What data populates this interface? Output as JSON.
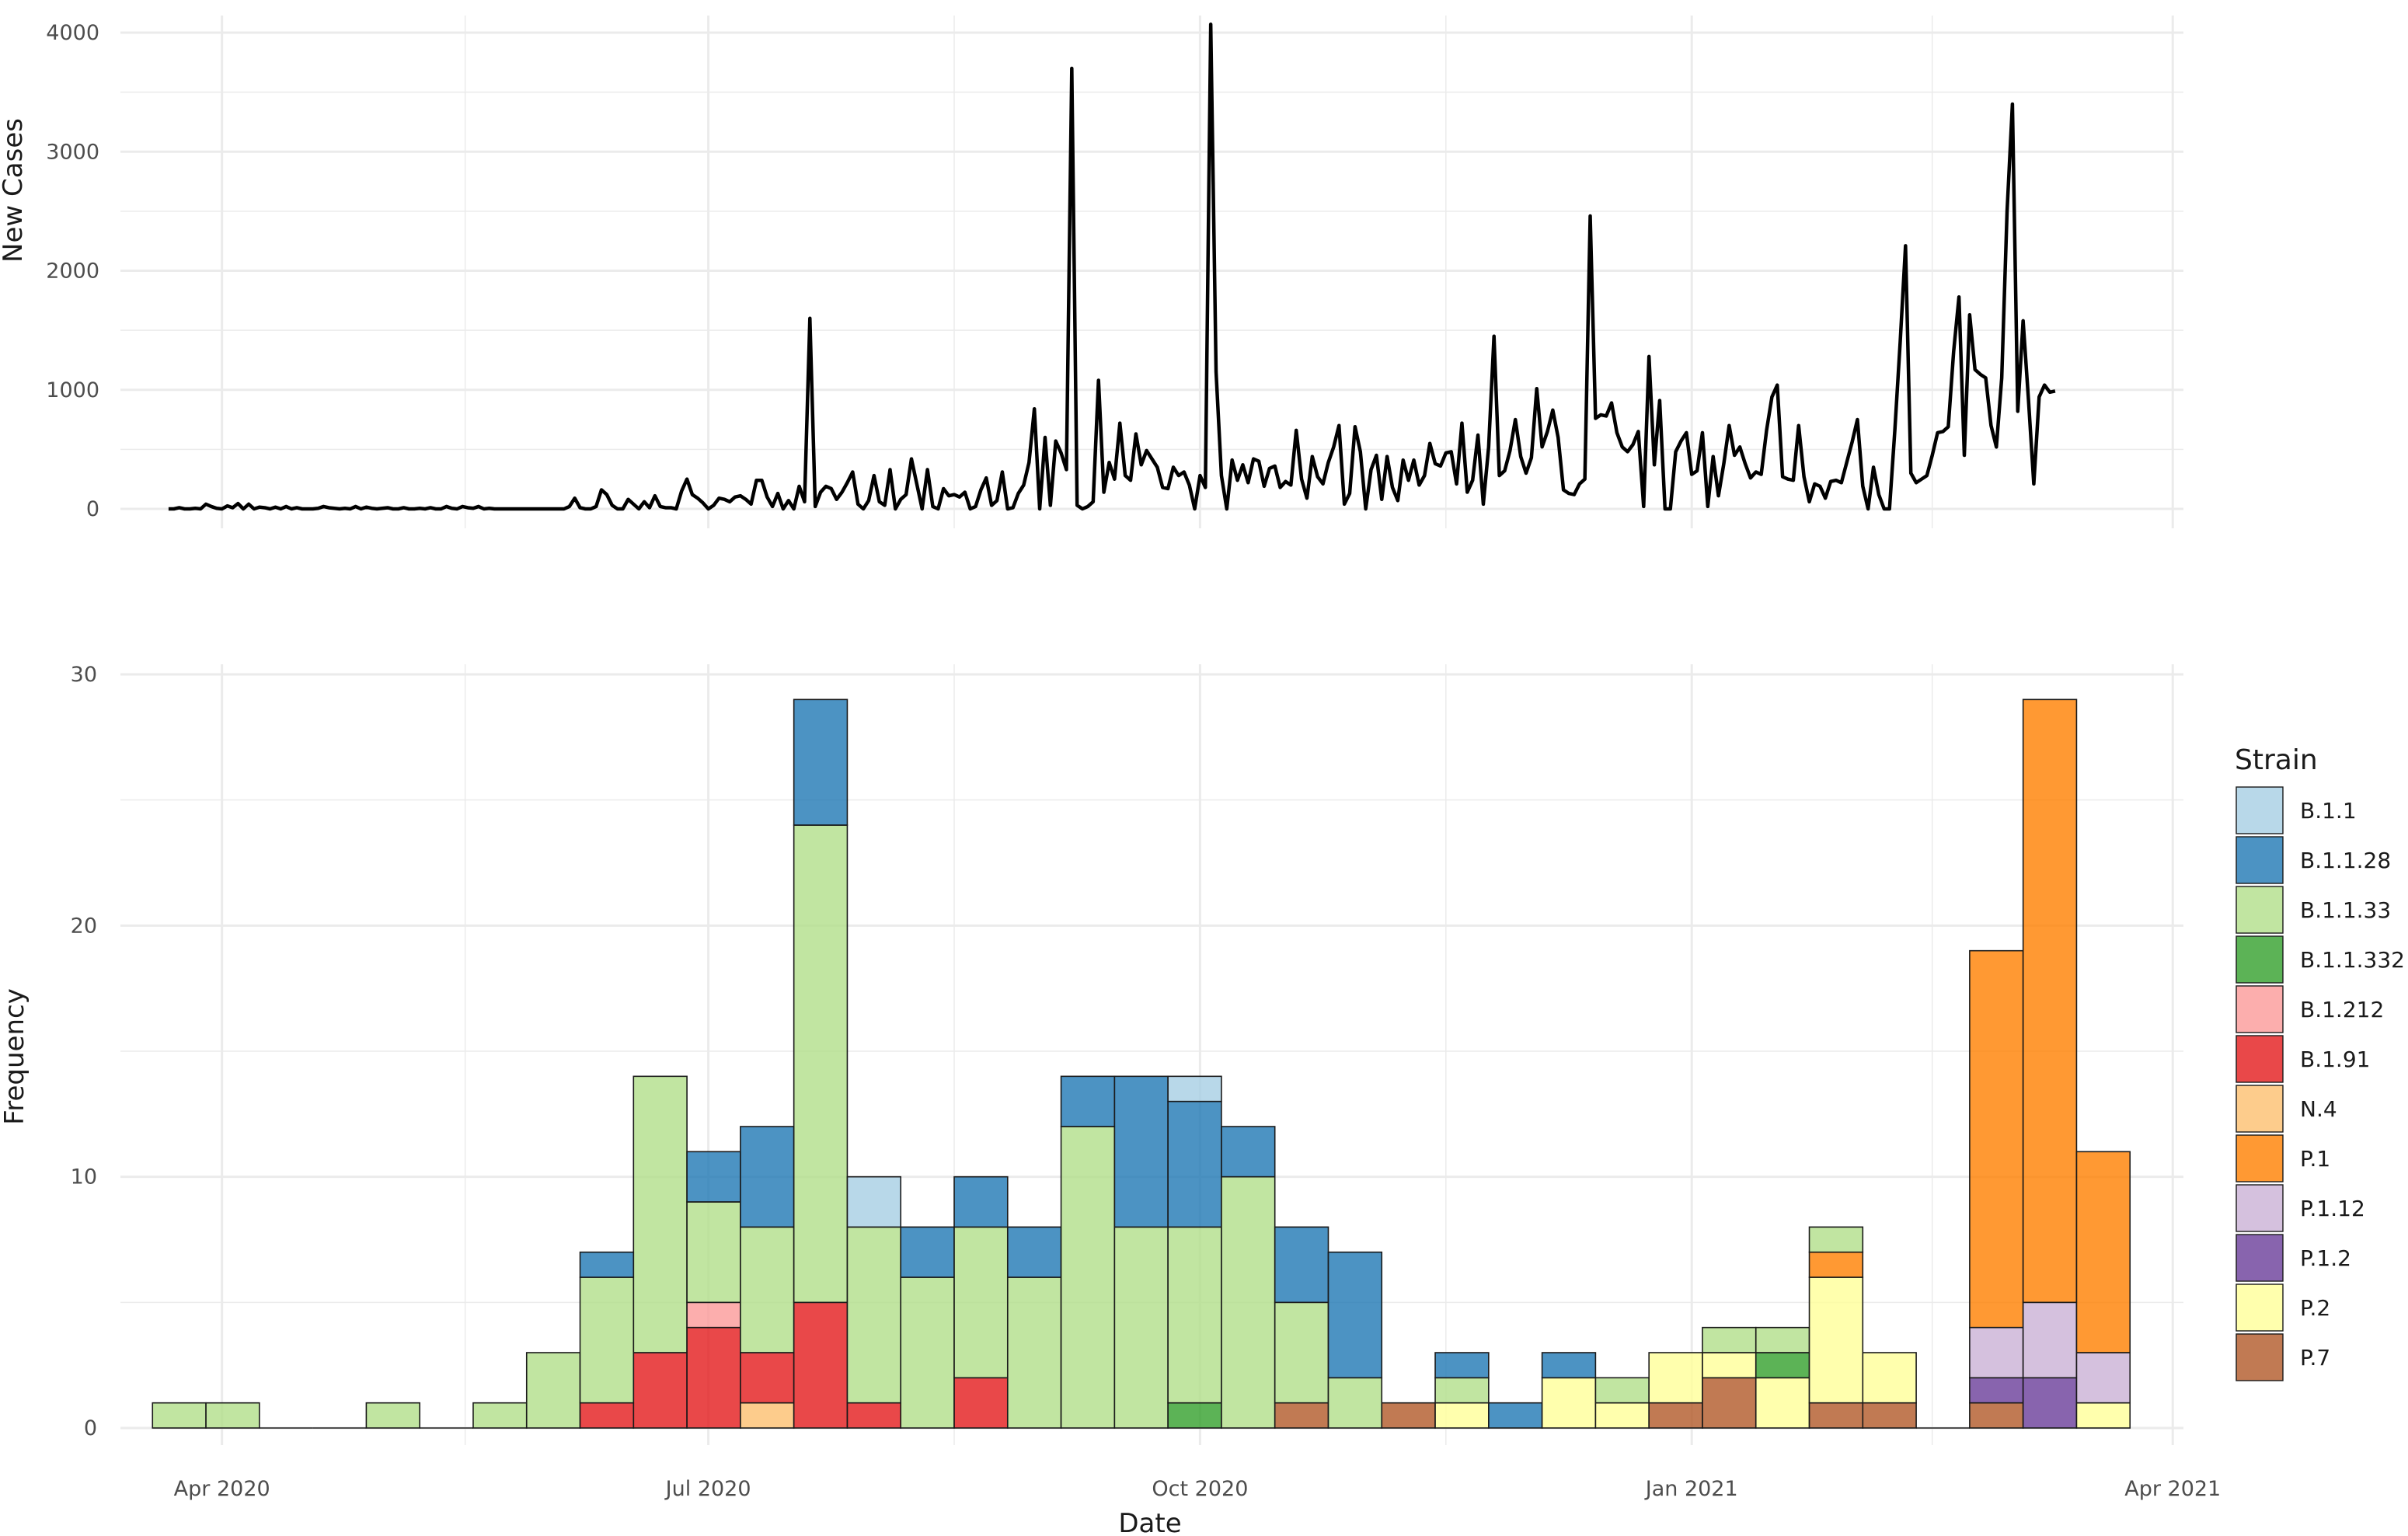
{
  "chart_data": [
    {
      "type": "line",
      "ylabel": "New Cases",
      "xlabel": "",
      "ylim": [
        0,
        4100
      ],
      "yticks": [
        "0",
        "1000",
        "2000",
        "3000",
        "4000"
      ],
      "xlim": [
        "2020-03-13",
        "2021-04-03"
      ],
      "grid": true,
      "series": [
        {
          "color": "#000000",
          "x_start": "2020-03-22",
          "values": [
            0,
            0,
            10,
            0,
            0,
            5,
            0,
            40,
            20,
            5,
            0,
            25,
            10,
            45,
            0,
            40,
            0,
            15,
            10,
            0,
            15,
            0,
            20,
            0,
            10,
            0,
            0,
            0,
            5,
            20,
            10,
            5,
            0,
            5,
            0,
            20,
            0,
            15,
            5,
            0,
            5,
            10,
            0,
            0,
            10,
            0,
            0,
            5,
            0,
            10,
            0,
            0,
            20,
            5,
            0,
            20,
            10,
            5,
            20,
            0,
            5,
            0,
            0,
            0,
            0,
            0,
            0,
            0,
            0,
            0,
            0,
            0,
            0,
            0,
            0,
            20,
            90,
            10,
            0,
            0,
            20,
            160,
            120,
            30,
            0,
            0,
            80,
            40,
            0,
            60,
            10,
            110,
            20,
            10,
            10,
            0,
            150,
            250,
            120,
            90,
            50,
            0,
            30,
            90,
            80,
            60,
            100,
            110,
            80,
            40,
            240,
            240,
            100,
            20,
            130,
            0,
            70,
            0,
            190,
            60,
            1600,
            20,
            140,
            190,
            170,
            80,
            140,
            220,
            310,
            40,
            0,
            70,
            280,
            60,
            30,
            330,
            0,
            80,
            120,
            420,
            210,
            0,
            330,
            20,
            0,
            170,
            110,
            120,
            100,
            140,
            0,
            20,
            160,
            260,
            30,
            70,
            310,
            0,
            10,
            130,
            200,
            390,
            840,
            0,
            600,
            30,
            570,
            470,
            330,
            3700,
            30,
            0,
            20,
            60,
            1080,
            140,
            390,
            250,
            720,
            280,
            240,
            630,
            370,
            490,
            420,
            350,
            180,
            170,
            350,
            280,
            310,
            200,
            0,
            280,
            180,
            4070,
            1150,
            280,
            0,
            410,
            240,
            370,
            220,
            420,
            400,
            190,
            340,
            360,
            180,
            230,
            200,
            660,
            250,
            90,
            440,
            270,
            210,
            390,
            520,
            700,
            40,
            130,
            690,
            480,
            0,
            330,
            450,
            80,
            440,
            180,
            70,
            410,
            240,
            410,
            200,
            280,
            550,
            380,
            360,
            470,
            480,
            210,
            720,
            140,
            240,
            620,
            40,
            520,
            1450,
            280,
            320,
            490,
            750,
            440,
            300,
            430,
            1010,
            520,
            650,
            830,
            600,
            160,
            130,
            120,
            210,
            250,
            2460,
            760,
            790,
            780,
            890,
            640,
            520,
            480,
            540,
            650,
            20,
            1280,
            370,
            910,
            0,
            0,
            480,
            570,
            640,
            290,
            320,
            640,
            20,
            440,
            110,
            380,
            700,
            450,
            520,
            380,
            260,
            310,
            290,
            660,
            940,
            1040,
            270,
            250,
            240,
            700,
            270,
            60,
            210,
            190,
            90,
            230,
            240,
            220,
            390,
            560,
            750,
            190,
            0,
            350,
            120,
            0,
            0,
            660,
            1400,
            2210,
            300,
            220,
            250,
            280,
            450,
            640,
            650,
            690,
            1320,
            1780,
            450,
            1630,
            1170,
            1130,
            1100,
            700,
            520,
            1100,
            2500,
            3400,
            820,
            1580,
            920,
            210,
            940,
            1040,
            980,
            990
          ]
        }
      ]
    },
    {
      "type": "bar",
      "stacked": true,
      "xlabel": "Date",
      "ylabel": "Frequency",
      "ylim": [
        0,
        30
      ],
      "yticks": [
        "0",
        "10",
        "20",
        "30"
      ],
      "xlim": [
        "2020-03-13",
        "2021-04-03"
      ],
      "xticks": [
        {
          "date": "2020-04-01",
          "label": "Apr 2020"
        },
        {
          "date": "2020-07-01",
          "label": "Jul 2020"
        },
        {
          "date": "2020-10-01",
          "label": "Oct 2020"
        },
        {
          "date": "2021-01-01",
          "label": "Jan 2021"
        },
        {
          "date": "2021-04-01",
          "label": "Apr 2021"
        }
      ],
      "grid": true,
      "legend_position": "right",
      "legend_title": "Strain",
      "strains": [
        {
          "name": "B.1.1",
          "color": "#A6CEE3"
        },
        {
          "name": "B.1.1.28",
          "color": "#1F78B4"
        },
        {
          "name": "B.1.1.33",
          "color": "#B2DF8A"
        },
        {
          "name": "B.1.1.332",
          "color": "#33A02C"
        },
        {
          "name": "B.1.212",
          "color": "#FB9A99"
        },
        {
          "name": "B.1.91",
          "color": "#E31A1C"
        },
        {
          "name": "N.4",
          "color": "#FDBF6F"
        },
        {
          "name": "P.1",
          "color": "#FF7F00"
        },
        {
          "name": "P.1.12",
          "color": "#CAB2D6"
        },
        {
          "name": "P.1.2",
          "color": "#6A3D9A"
        },
        {
          "name": "P.2",
          "color": "#FFFF99"
        },
        {
          "name": "P.7",
          "color": "#B15928"
        }
      ],
      "bin_width_days": 10,
      "bins": [
        {
          "start": "2020-03-19",
          "counts": {
            "B.1.1.33": 1
          }
        },
        {
          "start": "2020-03-29",
          "counts": {
            "B.1.1.33": 1
          }
        },
        {
          "start": "2020-04-08",
          "counts": {}
        },
        {
          "start": "2020-04-18",
          "counts": {}
        },
        {
          "start": "2020-04-28",
          "counts": {
            "B.1.1.33": 1
          }
        },
        {
          "start": "2020-05-08",
          "counts": {}
        },
        {
          "start": "2020-05-18",
          "counts": {
            "B.1.1.33": 1
          }
        },
        {
          "start": "2020-05-28",
          "counts": {
            "B.1.1.33": 3
          }
        },
        {
          "start": "2020-06-07",
          "counts": {
            "B.1.91": 1,
            "B.1.1.33": 5,
            "B.1.1.28": 1
          }
        },
        {
          "start": "2020-06-17",
          "counts": {
            "B.1.91": 3,
            "B.1.1.33": 11
          }
        },
        {
          "start": "2020-06-27",
          "counts": {
            "B.1.91": 4,
            "B.1.212": 1,
            "B.1.1.33": 4,
            "B.1.1.28": 2
          }
        },
        {
          "start": "2020-07-07",
          "counts": {
            "N.4": 1,
            "B.1.91": 2,
            "B.1.1.33": 5,
            "B.1.1.28": 4
          }
        },
        {
          "start": "2020-07-17",
          "counts": {
            "B.1.91": 5,
            "B.1.1.33": 19,
            "B.1.1.28": 5
          }
        },
        {
          "start": "2020-07-27",
          "counts": {
            "B.1.91": 1,
            "B.1.1.33": 7,
            "B.1.1": 2
          }
        },
        {
          "start": "2020-08-06",
          "counts": {
            "B.1.1.33": 6,
            "B.1.1.28": 2
          }
        },
        {
          "start": "2020-08-16",
          "counts": {
            "B.1.91": 2,
            "B.1.1.33": 6,
            "B.1.1.28": 2
          }
        },
        {
          "start": "2020-08-26",
          "counts": {
            "B.1.1.33": 6,
            "B.1.1.28": 2
          }
        },
        {
          "start": "2020-09-05",
          "counts": {
            "B.1.1.33": 12,
            "B.1.1.28": 2
          }
        },
        {
          "start": "2020-09-15",
          "counts": {
            "B.1.1.33": 8,
            "B.1.1.28": 6
          }
        },
        {
          "start": "2020-09-25",
          "counts": {
            "B.1.1.332": 1,
            "B.1.1.33": 7,
            "B.1.1.28": 5,
            "B.1.1": 1
          }
        },
        {
          "start": "2020-10-05",
          "counts": {
            "B.1.1.33": 10,
            "B.1.1.28": 2
          }
        },
        {
          "start": "2020-10-15",
          "counts": {
            "P.7": 1,
            "B.1.1.33": 4,
            "B.1.1.28": 3
          }
        },
        {
          "start": "2020-10-25",
          "counts": {
            "B.1.1.33": 2,
            "B.1.1.28": 5
          }
        },
        {
          "start": "2020-11-04",
          "counts": {
            "P.7": 1
          }
        },
        {
          "start": "2020-11-14",
          "counts": {
            "P.2": 1,
            "B.1.1.33": 1,
            "B.1.1.28": 1
          }
        },
        {
          "start": "2020-11-24",
          "counts": {
            "B.1.1.28": 1
          }
        },
        {
          "start": "2020-12-04",
          "counts": {
            "P.2": 2,
            "B.1.1.28": 1
          }
        },
        {
          "start": "2020-12-14",
          "counts": {
            "P.2": 1,
            "B.1.1.33": 1
          }
        },
        {
          "start": "2020-12-24",
          "counts": {
            "P.7": 1,
            "P.2": 2
          }
        },
        {
          "start": "2021-01-03",
          "counts": {
            "P.7": 2,
            "P.2": 1,
            "B.1.1.33": 1
          }
        },
        {
          "start": "2021-01-13",
          "counts": {
            "P.2": 2,
            "B.1.1.332": 1,
            "B.1.1.33": 1
          }
        },
        {
          "start": "2021-01-23",
          "counts": {
            "P.7": 1,
            "P.2": 5,
            "P.1": 1,
            "B.1.1.33": 1
          }
        },
        {
          "start": "2021-02-02",
          "counts": {
            "P.7": 1,
            "P.2": 2
          }
        },
        {
          "start": "2021-02-12",
          "counts": {}
        },
        {
          "start": "2021-02-22",
          "counts": {
            "P.7": 1,
            "P.1.2": 1,
            "P.1.12": 2,
            "P.1": 15
          }
        },
        {
          "start": "2021-03-04",
          "counts": {
            "P.1.2": 2,
            "P.1.12": 3,
            "P.1": 24
          }
        },
        {
          "start": "2021-03-14",
          "counts": {
            "P.2": 1,
            "P.1.12": 2,
            "P.1": 8
          }
        }
      ]
    }
  ]
}
